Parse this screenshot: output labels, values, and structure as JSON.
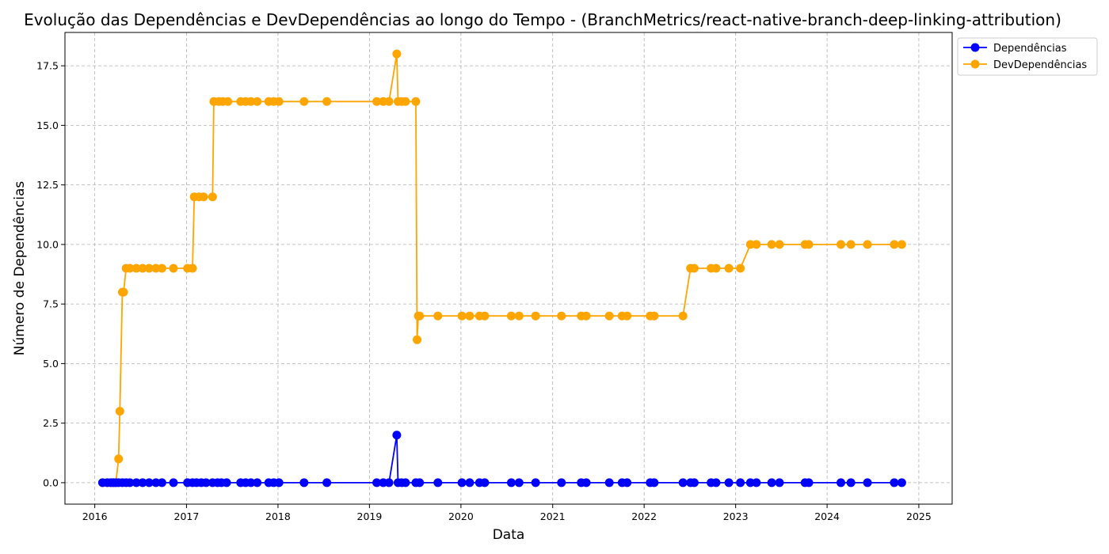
{
  "chart_data": {
    "type": "line",
    "title": "Evolução das Dependências e DevDependências ao longo do Tempo - (BranchMetrics/react-native-branch-deep-linking-attribution)",
    "xlabel": "Data",
    "ylabel": "Número de Dependências",
    "xlim": [
      "2015-09-04",
      "2025-05-14"
    ],
    "ylim": [
      -0.9,
      18.9
    ],
    "x_ticks": [
      "2016",
      "2017",
      "2018",
      "2019",
      "2020",
      "2021",
      "2022",
      "2023",
      "2024",
      "2025"
    ],
    "y_ticks": [
      "0.0",
      "2.5",
      "5.0",
      "7.5",
      "10.0",
      "12.5",
      "15.0",
      "17.5"
    ],
    "grid": true,
    "legend_position": "outside-top-right",
    "series": [
      {
        "name": "Dependências",
        "color": "#0000ff",
        "points": [
          [
            "2016-02-01",
            0
          ],
          [
            "2016-02-20",
            0
          ],
          [
            "2016-03-05",
            0
          ],
          [
            "2016-03-15",
            0
          ],
          [
            "2016-03-25",
            0
          ],
          [
            "2016-04-05",
            0
          ],
          [
            "2016-04-20",
            0
          ],
          [
            "2016-05-05",
            0
          ],
          [
            "2016-05-20",
            0
          ],
          [
            "2016-06-15",
            0
          ],
          [
            "2016-07-10",
            0
          ],
          [
            "2016-08-05",
            0
          ],
          [
            "2016-09-01",
            0
          ],
          [
            "2016-09-25",
            0
          ],
          [
            "2016-11-10",
            0
          ],
          [
            "2017-01-05",
            0
          ],
          [
            "2017-01-25",
            0
          ],
          [
            "2017-02-10",
            0
          ],
          [
            "2017-03-01",
            0
          ],
          [
            "2017-03-20",
            0
          ],
          [
            "2017-04-15",
            0
          ],
          [
            "2017-05-05",
            0
          ],
          [
            "2017-05-20",
            0
          ],
          [
            "2017-06-10",
            0
          ],
          [
            "2017-08-05",
            0
          ],
          [
            "2017-08-25",
            0
          ],
          [
            "2017-09-15",
            0
          ],
          [
            "2017-10-10",
            0
          ],
          [
            "2017-11-25",
            0
          ],
          [
            "2017-12-15",
            0
          ],
          [
            "2018-01-05",
            0
          ],
          [
            "2018-04-15",
            0
          ],
          [
            "2018-07-15",
            0
          ],
          [
            "2019-01-30",
            0
          ],
          [
            "2019-02-25",
            0
          ],
          [
            "2019-03-20",
            0
          ],
          [
            "2019-04-20",
            2
          ],
          [
            "2019-04-25",
            0
          ],
          [
            "2019-05-10",
            0
          ],
          [
            "2019-05-25",
            0
          ],
          [
            "2019-07-05",
            0
          ],
          [
            "2019-07-20",
            0
          ],
          [
            "2019-10-01",
            0
          ],
          [
            "2020-01-05",
            0
          ],
          [
            "2020-02-05",
            0
          ],
          [
            "2020-03-15",
            0
          ],
          [
            "2020-04-05",
            0
          ],
          [
            "2020-07-20",
            0
          ],
          [
            "2020-08-20",
            0
          ],
          [
            "2020-10-25",
            0
          ],
          [
            "2021-02-05",
            0
          ],
          [
            "2021-04-25",
            0
          ],
          [
            "2021-05-15",
            0
          ],
          [
            "2021-08-15",
            0
          ],
          [
            "2021-10-05",
            0
          ],
          [
            "2021-10-25",
            0
          ],
          [
            "2022-01-25",
            0
          ],
          [
            "2022-02-10",
            0
          ],
          [
            "2022-06-05",
            0
          ],
          [
            "2022-07-05",
            0
          ],
          [
            "2022-07-20",
            0
          ],
          [
            "2022-09-25",
            0
          ],
          [
            "2022-10-15",
            0
          ],
          [
            "2022-12-05",
            0
          ],
          [
            "2023-01-20",
            0
          ],
          [
            "2023-03-01",
            0
          ],
          [
            "2023-03-25",
            0
          ],
          [
            "2023-05-25",
            0
          ],
          [
            "2023-06-25",
            0
          ],
          [
            "2023-10-05",
            0
          ],
          [
            "2023-10-20",
            0
          ],
          [
            "2024-02-25",
            0
          ],
          [
            "2024-04-05",
            0
          ],
          [
            "2024-06-10",
            0
          ],
          [
            "2024-09-25",
            0
          ],
          [
            "2024-10-25",
            0
          ]
        ]
      },
      {
        "name": "DevDependências",
        "color": "#ffa500",
        "points": [
          [
            "2016-02-01",
            0
          ],
          [
            "2016-02-20",
            0
          ],
          [
            "2016-03-05",
            0
          ],
          [
            "2016-03-15",
            0
          ],
          [
            "2016-03-25",
            0
          ],
          [
            "2016-04-05",
            1
          ],
          [
            "2016-04-10",
            3
          ],
          [
            "2016-04-20",
            8
          ],
          [
            "2016-04-25",
            8
          ],
          [
            "2016-05-05",
            9
          ],
          [
            "2016-05-20",
            9
          ],
          [
            "2016-06-15",
            9
          ],
          [
            "2016-07-10",
            9
          ],
          [
            "2016-08-05",
            9
          ],
          [
            "2016-09-01",
            9
          ],
          [
            "2016-09-25",
            9
          ],
          [
            "2016-11-10",
            9
          ],
          [
            "2017-01-05",
            9
          ],
          [
            "2017-01-25",
            9
          ],
          [
            "2017-02-01",
            12
          ],
          [
            "2017-02-20",
            12
          ],
          [
            "2017-03-10",
            12
          ],
          [
            "2017-04-15",
            12
          ],
          [
            "2017-04-20",
            16
          ],
          [
            "2017-05-10",
            16
          ],
          [
            "2017-05-25",
            16
          ],
          [
            "2017-06-15",
            16
          ],
          [
            "2017-08-05",
            16
          ],
          [
            "2017-08-25",
            16
          ],
          [
            "2017-09-15",
            16
          ],
          [
            "2017-10-10",
            16
          ],
          [
            "2017-11-25",
            16
          ],
          [
            "2017-12-15",
            16
          ],
          [
            "2018-01-05",
            16
          ],
          [
            "2018-04-15",
            16
          ],
          [
            "2018-07-15",
            16
          ],
          [
            "2019-01-30",
            16
          ],
          [
            "2019-02-25",
            16
          ],
          [
            "2019-03-20",
            16
          ],
          [
            "2019-04-20",
            18
          ],
          [
            "2019-04-25",
            16
          ],
          [
            "2019-05-10",
            16
          ],
          [
            "2019-05-25",
            16
          ],
          [
            "2019-07-05",
            16
          ],
          [
            "2019-07-10",
            6
          ],
          [
            "2019-07-15",
            7
          ],
          [
            "2019-07-20",
            7
          ],
          [
            "2019-10-01",
            7
          ],
          [
            "2020-01-05",
            7
          ],
          [
            "2020-02-05",
            7
          ],
          [
            "2020-03-15",
            7
          ],
          [
            "2020-04-05",
            7
          ],
          [
            "2020-07-20",
            7
          ],
          [
            "2020-08-20",
            7
          ],
          [
            "2020-10-25",
            7
          ],
          [
            "2021-02-05",
            7
          ],
          [
            "2021-04-25",
            7
          ],
          [
            "2021-05-15",
            7
          ],
          [
            "2021-08-15",
            7
          ],
          [
            "2021-10-05",
            7
          ],
          [
            "2021-10-25",
            7
          ],
          [
            "2022-01-25",
            7
          ],
          [
            "2022-02-10",
            7
          ],
          [
            "2022-06-05",
            7
          ],
          [
            "2022-07-05",
            9
          ],
          [
            "2022-07-20",
            9
          ],
          [
            "2022-09-25",
            9
          ],
          [
            "2022-10-15",
            9
          ],
          [
            "2022-12-05",
            9
          ],
          [
            "2023-01-20",
            9
          ],
          [
            "2023-03-01",
            10
          ],
          [
            "2023-03-25",
            10
          ],
          [
            "2023-05-25",
            10
          ],
          [
            "2023-06-25",
            10
          ],
          [
            "2023-10-05",
            10
          ],
          [
            "2023-10-20",
            10
          ],
          [
            "2024-02-25",
            10
          ],
          [
            "2024-04-05",
            10
          ],
          [
            "2024-06-10",
            10
          ],
          [
            "2024-09-25",
            10
          ],
          [
            "2024-10-25",
            10
          ]
        ]
      }
    ]
  }
}
